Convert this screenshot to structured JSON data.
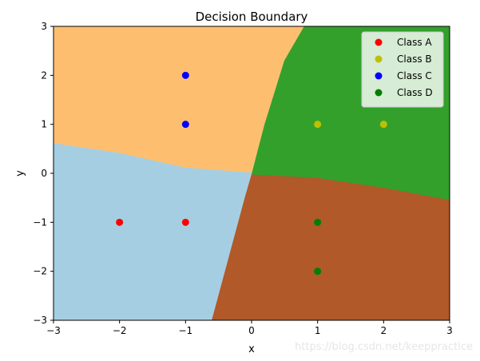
{
  "chart_data": {
    "type": "scatter",
    "title": "Decision Boundary",
    "xlabel": "x",
    "ylabel": "y",
    "xlim": [
      -3,
      3
    ],
    "ylim": [
      -3,
      3
    ],
    "xticks": [
      "−3",
      "−2",
      "−1",
      "0",
      "1",
      "2",
      "3"
    ],
    "yticks": [
      "−3",
      "−2",
      "−1",
      "0",
      "1",
      "2",
      "3"
    ],
    "legend_position": "top-right",
    "grid": false,
    "series": [
      {
        "name": "Class A",
        "color": "#ff0000",
        "points": [
          [
            -2,
            -1
          ],
          [
            -1,
            -1
          ]
        ]
      },
      {
        "name": "Class B",
        "color": "#bfbf00",
        "points": [
          [
            1,
            1
          ],
          [
            2,
            1
          ]
        ]
      },
      {
        "name": "Class C",
        "color": "#0000ff",
        "points": [
          [
            -1,
            2
          ],
          [
            -1,
            1
          ]
        ]
      },
      {
        "name": "Class D",
        "color": "#008000",
        "points": [
          [
            1,
            -1
          ],
          [
            1,
            -2
          ]
        ]
      }
    ],
    "regions": [
      {
        "class": "Class A",
        "color": "#a6cee3",
        "boundary": [
          [
            -3,
            0.62
          ],
          [
            -2,
            0.42
          ],
          [
            -1,
            0.12
          ],
          [
            0,
            0.02
          ],
          [
            -0.1,
            -0.5
          ],
          [
            -0.3,
            -1.5
          ],
          [
            -0.6,
            -3
          ],
          [
            -3,
            -3
          ]
        ]
      },
      {
        "class": "Class C",
        "color": "#fdbf6f",
        "boundary": [
          [
            -3,
            3
          ],
          [
            0.8,
            3
          ],
          [
            0.5,
            2.3
          ],
          [
            0.2,
            1
          ],
          [
            0,
            0.02
          ],
          [
            -1,
            0.12
          ],
          [
            -2,
            0.42
          ],
          [
            -3,
            0.62
          ]
        ]
      },
      {
        "class": "Class B",
        "color": "#33a02c",
        "boundary": [
          [
            0.8,
            3
          ],
          [
            3,
            3
          ],
          [
            3,
            -0.55
          ],
          [
            2,
            -0.3
          ],
          [
            1,
            -0.1
          ],
          [
            0,
            -0.03
          ],
          [
            0.2,
            1
          ],
          [
            0.5,
            2.3
          ]
        ]
      },
      {
        "class": "Class D",
        "color": "#b15928",
        "boundary": [
          [
            0,
            -0.03
          ],
          [
            1,
            -0.1
          ],
          [
            2,
            -0.3
          ],
          [
            3,
            -0.55
          ],
          [
            3,
            -3
          ],
          [
            -0.6,
            -3
          ],
          [
            -0.3,
            -1.5
          ],
          [
            -0.1,
            -0.5
          ]
        ]
      }
    ]
  },
  "watermark": "https://blog.csdn.net/keeppractice"
}
